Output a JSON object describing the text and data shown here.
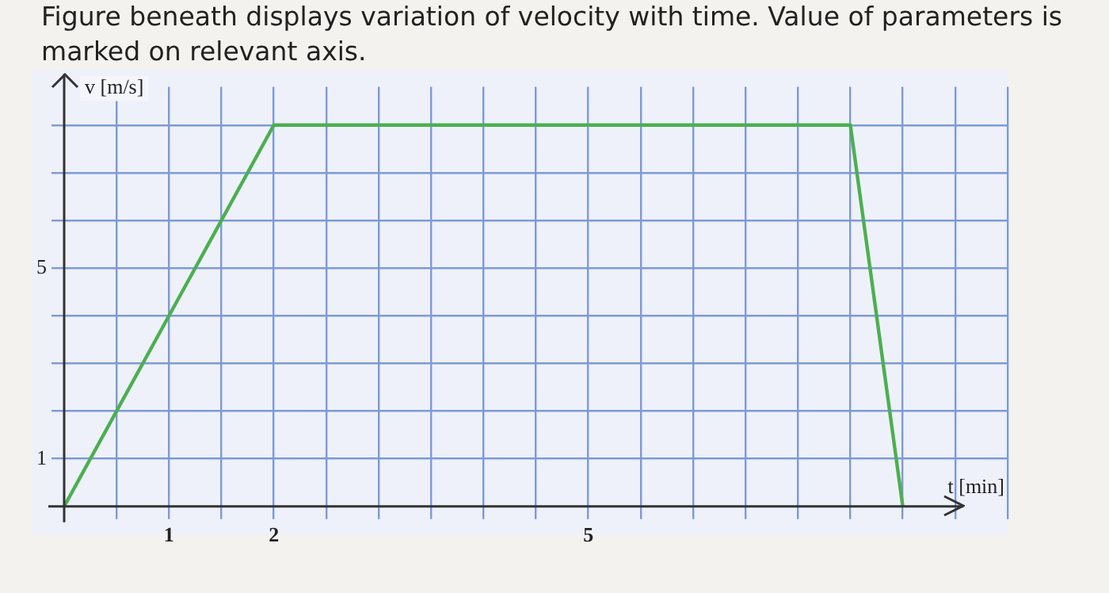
{
  "chart_data": {
    "type": "line",
    "title": "Figure beneath displays variation of velocity with time. Value of parameters is marked on relevant axis.",
    "xlabel": "t [min]",
    "ylabel": "v [m/s]",
    "x": [
      0,
      2,
      7.5,
      8
    ],
    "series": [
      {
        "color": "#4caf50",
        "values": [
          0,
          8,
          8,
          0
        ]
      }
    ],
    "xlim": [
      0,
      9
    ],
    "ylim": [
      0,
      8.8
    ],
    "xticks": [
      {
        "value": 0.5,
        "label": null
      },
      1,
      {
        "value": 1.5,
        "label": null
      },
      2,
      {
        "value": 2.5,
        "label": null
      },
      {
        "value": 3,
        "label": null
      },
      {
        "value": 3.5,
        "label": null
      },
      {
        "value": 4,
        "label": null
      },
      {
        "value": 4.5,
        "label": null
      },
      5,
      {
        "value": 5.5,
        "label": null
      },
      {
        "value": 6,
        "label": null
      },
      {
        "value": 6.5,
        "label": null
      },
      {
        "value": 7,
        "label": null
      },
      {
        "value": 7.5,
        "label": null
      },
      {
        "value": 8,
        "label": null
      },
      {
        "value": 8.5,
        "label": null
      },
      {
        "value": 9,
        "label": null
      }
    ],
    "yticks": [
      1,
      {
        "value": 2,
        "label": null
      },
      {
        "value": 3,
        "label": null
      },
      {
        "value": 4,
        "label": null
      },
      5,
      {
        "value": 6,
        "label": null
      },
      {
        "value": 7,
        "label": null
      },
      {
        "value": 8,
        "label": null
      }
    ],
    "grid": true,
    "legend": false,
    "marker": "none",
    "line_style": "solid"
  }
}
